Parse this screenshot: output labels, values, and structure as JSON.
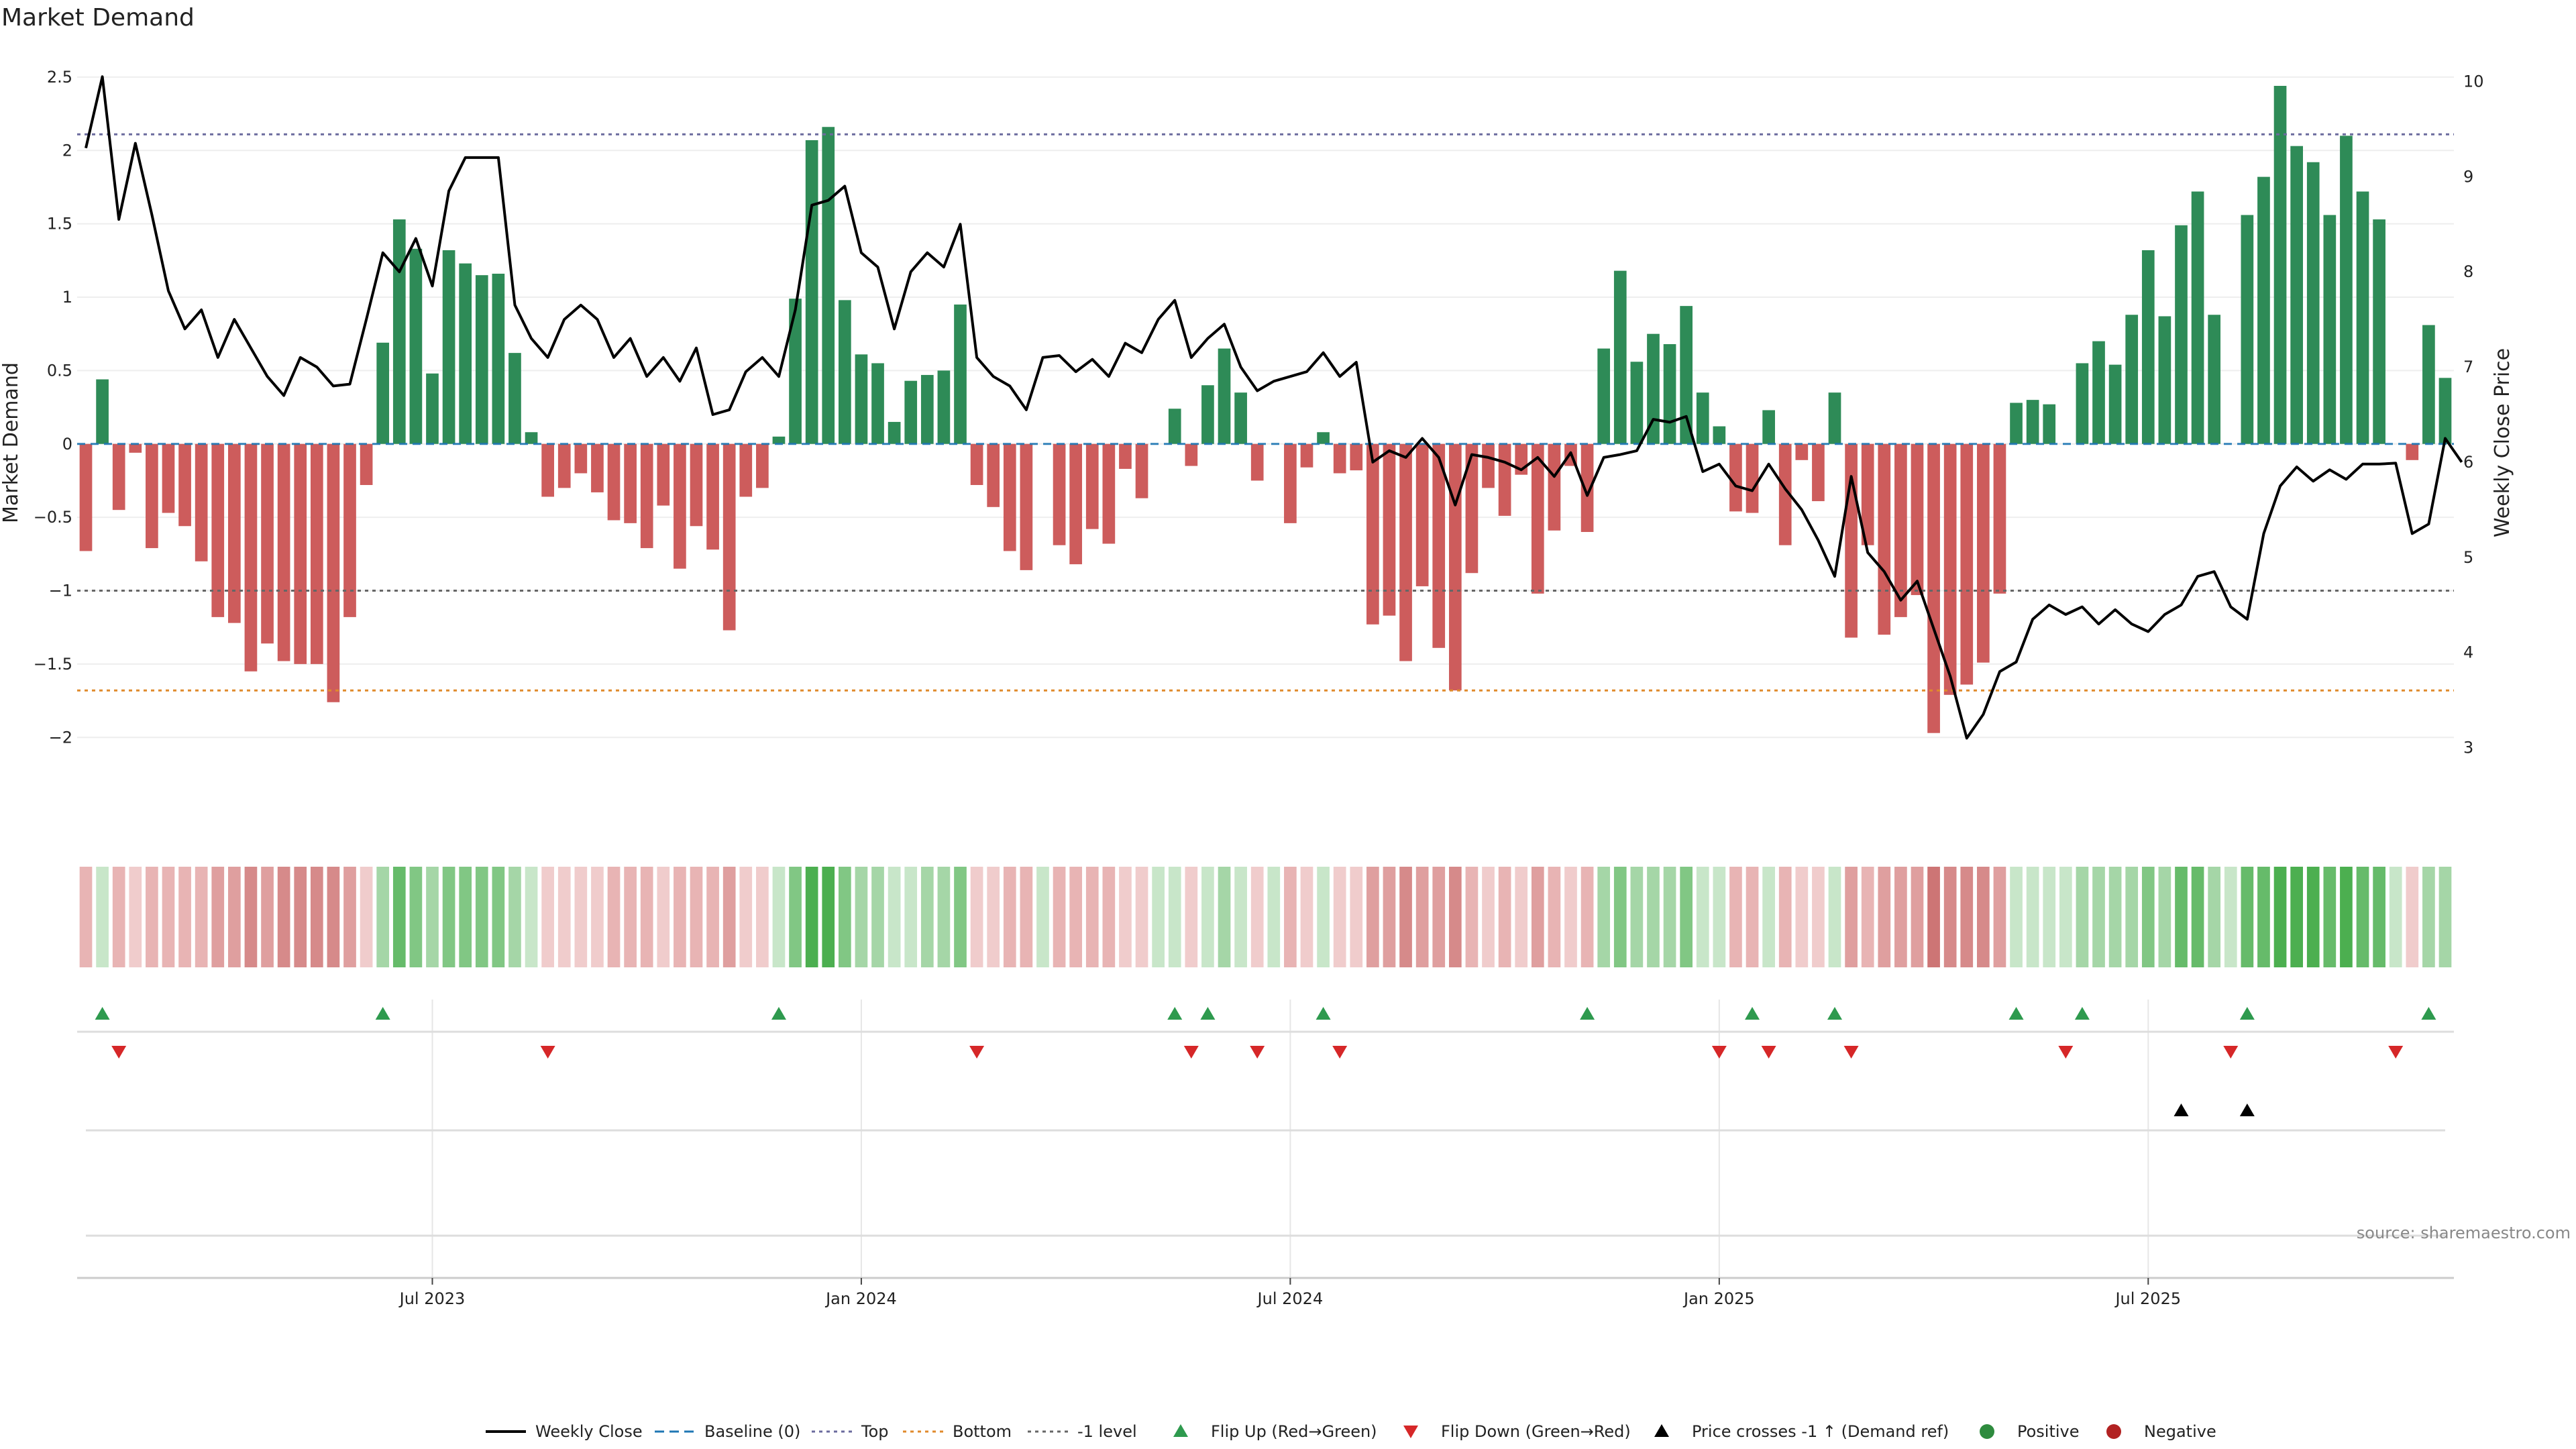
{
  "chart_data": {
    "type": "bar",
    "title": "Market Demand",
    "ylabel": "Market Demand",
    "y2label": "Weekly Close Price",
    "ylim": [
      -2.2,
      2.6
    ],
    "y2lim": [
      2.8,
      10.2
    ],
    "yticks": [
      -2,
      -1.5,
      -1,
      -0.5,
      0,
      0.5,
      1,
      1.5,
      2,
      2.5
    ],
    "ytick_labels": [
      "−2",
      "−1.5",
      "−1",
      "−0.5",
      "0",
      "0.5",
      "1",
      "1.5",
      "2",
      "2.5"
    ],
    "y2ticks": [
      3,
      4,
      5,
      6,
      7,
      8,
      9,
      10
    ],
    "y2tick_labels": [
      "3",
      "4",
      "5",
      "6",
      "7",
      "8",
      "9",
      "10"
    ],
    "xtick_labels": [
      "Jul 2023",
      "Jan 2024",
      "Jul 2024",
      "Jan 2025",
      "Jul 2025"
    ],
    "xtick_index": [
      21,
      47,
      73,
      99,
      125
    ],
    "reference_lines": {
      "top": 2.11,
      "bottom": -1.68,
      "minus_one": -1.0,
      "baseline": 0
    },
    "demand": [
      -0.73,
      0.44,
      -0.45,
      -0.06,
      -0.71,
      -0.47,
      -0.56,
      -0.8,
      -1.18,
      -1.22,
      -1.55,
      -1.36,
      -1.48,
      -1.5,
      -1.5,
      -1.76,
      -1.18,
      -0.28,
      0.69,
      1.53,
      1.33,
      0.48,
      1.32,
      1.23,
      1.15,
      1.16,
      0.62,
      0.08,
      -0.36,
      -0.3,
      -0.2,
      -0.33,
      -0.52,
      -0.54,
      -0.71,
      -0.42,
      -0.85,
      -0.56,
      -0.72,
      -1.27,
      -0.36,
      -0.3,
      0.05,
      0.99,
      2.07,
      2.16,
      0.98,
      0.61,
      0.55,
      0.15,
      0.43,
      0.47,
      0.5,
      0.95,
      -0.28,
      -0.43,
      -0.73,
      -0.86,
      0,
      -0.69,
      -0.82,
      -0.58,
      -0.68,
      -0.17,
      -0.37,
      0.0,
      0.24,
      -0.15,
      0.4,
      0.65,
      0.35,
      -0.25,
      0,
      -0.54,
      -0.16,
      0.08,
      -0.2,
      -0.18,
      -1.23,
      -1.17,
      -1.48,
      -0.97,
      -1.39,
      -1.68,
      -0.88,
      -0.3,
      -0.49,
      -0.21,
      -1.02,
      -0.59,
      -0.15,
      -0.6,
      0.65,
      1.18,
      0.56,
      0.75,
      0.68,
      0.94,
      0.35,
      0.12,
      -0.46,
      -0.47,
      0.23,
      -0.69,
      -0.11,
      -0.39,
      0.35,
      -1.32,
      -0.69,
      -1.3,
      -1.18,
      -1.03,
      -1.97,
      -1.71,
      -1.64,
      -1.49,
      -1.02,
      0.28,
      0.3,
      0.27,
      0,
      0.55,
      0.7,
      0.54,
      0.88,
      1.32,
      0.87,
      1.49,
      1.72,
      0.88,
      0,
      1.56,
      1.82,
      2.44,
      2.03,
      1.92,
      1.56,
      2.1,
      1.72,
      1.53,
      0,
      -0.11,
      0.81,
      0.45
    ],
    "weekly_close": [
      9.3,
      10.05,
      8.55,
      9.35,
      8.6,
      7.8,
      7.4,
      7.6,
      7.1,
      7.5,
      7.2,
      6.9,
      6.7,
      7.1,
      7.0,
      6.8,
      6.82,
      7.5,
      8.2,
      8.0,
      8.35,
      7.85,
      8.85,
      9.2,
      9.2,
      9.2,
      7.65,
      7.3,
      7.1,
      7.5,
      7.65,
      7.5,
      7.1,
      7.3,
      6.9,
      7.1,
      6.85,
      7.2,
      6.5,
      6.55,
      6.95,
      7.1,
      6.9,
      7.6,
      8.7,
      8.75,
      8.9,
      8.2,
      8.05,
      7.4,
      8.0,
      8.2,
      8.05,
      8.5,
      7.1,
      6.9,
      6.8,
      6.55,
      7.1,
      7.12,
      6.95,
      7.08,
      6.9,
      7.25,
      7.15,
      7.5,
      7.7,
      7.1,
      7.3,
      7.45,
      7.0,
      6.75,
      6.85,
      6.9,
      6.95,
      7.15,
      6.9,
      7.05,
      6.0,
      6.12,
      6.05,
      6.25,
      6.05,
      5.55,
      6.08,
      6.05,
      6.0,
      5.92,
      6.05,
      5.85,
      6.1,
      5.65,
      6.05,
      6.08,
      6.12,
      6.45,
      6.42,
      6.48,
      5.9,
      5.98,
      5.75,
      5.7,
      5.98,
      5.72,
      5.5,
      5.18,
      4.8,
      5.85,
      5.05,
      4.85,
      4.55,
      4.75,
      4.25,
      3.75,
      3.1,
      3.35,
      3.8,
      3.9,
      4.35,
      4.5,
      4.4,
      4.48,
      4.3,
      4.45,
      4.3,
      4.22,
      4.4,
      4.5,
      4.8,
      4.85,
      4.48,
      4.35,
      5.25,
      5.75,
      5.95,
      5.8,
      5.92,
      5.82,
      5.98,
      5.98,
      5.99,
      5.25,
      5.35,
      6.25,
      6.0
    ],
    "flip_up_index": [
      1,
      18,
      42,
      66,
      68,
      75,
      91,
      101,
      106,
      117,
      121,
      131,
      142
    ],
    "flip_down_index": [
      2,
      28,
      54,
      67,
      71,
      76,
      99,
      102,
      107,
      120,
      130,
      140
    ],
    "price_cross_index": [
      127,
      131
    ],
    "legend": [
      {
        "name": "Weekly Close",
        "kind": "line",
        "color": "#000000"
      },
      {
        "name": "Baseline (0)",
        "kind": "dash",
        "color": "#1f77b4"
      },
      {
        "name": "Top",
        "kind": "dot",
        "color": "#6b6b9e"
      },
      {
        "name": "Bottom",
        "kind": "dot",
        "color": "#e08a2c"
      },
      {
        "name": "-1 level",
        "kind": "dot",
        "color": "#666666"
      },
      {
        "name": "Flip Up (Red→Green)",
        "kind": "tri-up",
        "color": "#2e9a4e"
      },
      {
        "name": "Flip Down (Green→Red)",
        "kind": "tri-down",
        "color": "#d62728"
      },
      {
        "name": "Price crosses -1 ↑ (Demand ref)",
        "kind": "tri-up",
        "color": "#000000"
      },
      {
        "name": "Positive",
        "kind": "dot-marker",
        "color": "#2e8b3e"
      },
      {
        "name": "Negative",
        "kind": "dot-marker",
        "color": "#b22222"
      }
    ],
    "legend_placement": "bottom-center",
    "grid": true
  },
  "colors": {
    "positive": "#2e8b57",
    "negative": "#cd5c5c",
    "price_line": "#000000"
  },
  "source_text": "source: sharemaestro.com"
}
